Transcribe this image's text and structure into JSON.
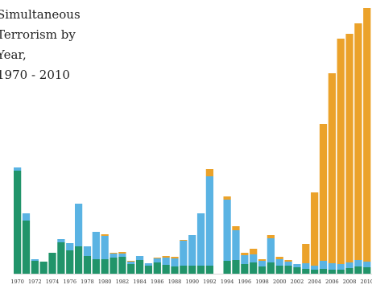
{
  "chart_data": {
    "type": "bar",
    "stacked": true,
    "title": "Simultaneous Terrorism by Year,\n1970 - 2010",
    "title_lines": [
      "Simultaneous",
      "Terrorism by",
      "Year,",
      "1970 - 2010"
    ],
    "xlabel": "",
    "ylabel": "",
    "grid": false,
    "legend": "none",
    "x": [
      1970,
      1971,
      1972,
      1973,
      1974,
      1975,
      1976,
      1977,
      1978,
      1979,
      1980,
      1981,
      1982,
      1983,
      1984,
      1985,
      1986,
      1987,
      1988,
      1989,
      1990,
      1991,
      1992,
      1993,
      1994,
      1995,
      1996,
      1997,
      1998,
      1999,
      2000,
      2001,
      2002,
      2003,
      2004,
      2005,
      2006,
      2007,
      2008,
      2009,
      2010
    ],
    "tick_labels": [
      "1970",
      "1972",
      "1974",
      "1976",
      "1978",
      "1980",
      "1982",
      "1984",
      "1986",
      "1988",
      "1990",
      "1992",
      "1994",
      "1996",
      "1998",
      "2000",
      "2002",
      "2004",
      "2006",
      "2008",
      "2010"
    ],
    "ylim": [
      0,
      330
    ],
    "series": [
      {
        "color": "#21946a",
        "values": [
          128,
          66,
          16,
          15,
          26,
          39,
          29,
          34,
          22,
          18,
          18,
          20,
          21,
          12,
          17,
          10,
          14,
          11,
          9,
          10,
          10,
          10,
          10,
          0,
          16,
          17,
          12,
          14,
          9,
          14,
          10,
          10,
          8,
          6,
          5,
          6,
          5,
          5,
          7,
          9,
          8
        ]
      },
      {
        "color": "#5ab3e3",
        "values": [
          4,
          9,
          2,
          0,
          0,
          4,
          9,
          53,
          12,
          34,
          29,
          5,
          4,
          3,
          5,
          3,
          5,
          9,
          10,
          31,
          38,
          65,
          111,
          0,
          76,
          37,
          11,
          10,
          7,
          30,
          8,
          5,
          4,
          7,
          5,
          10,
          8,
          7,
          7,
          8,
          7
        ]
      },
      {
        "color": "#eba22a",
        "values": [
          0,
          0,
          0,
          0,
          0,
          0,
          0,
          0,
          0,
          0,
          2,
          1,
          2,
          1,
          0,
          0,
          1,
          2,
          2,
          1,
          0,
          0,
          9,
          0,
          4,
          5,
          3,
          7,
          2,
          4,
          3,
          2,
          0,
          24,
          91,
          170,
          236,
          280,
          284,
          294,
          315
        ]
      }
    ]
  }
}
